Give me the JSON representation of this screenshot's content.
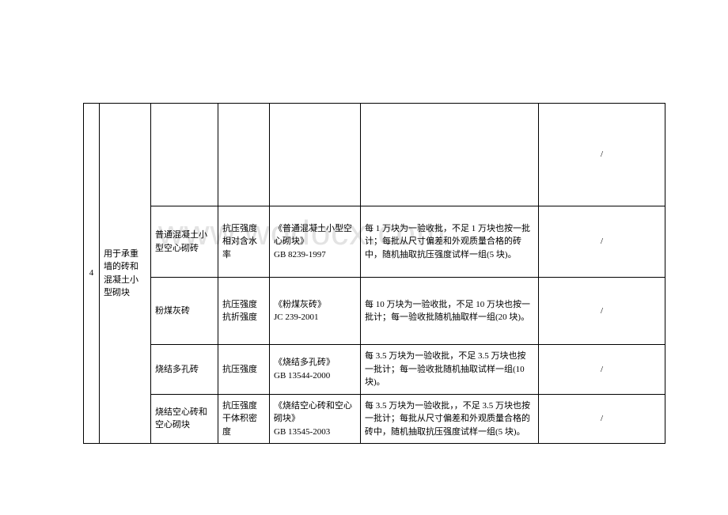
{
  "watermark": "www.wodocx.com",
  "table": {
    "index": "4",
    "category": "用于承重墙的砖和混凝土小型砌块",
    "rows": [
      {
        "material": "",
        "test": "",
        "standard": "",
        "sampling": "",
        "note": "/"
      },
      {
        "material": "普通混凝土小型空心砌砖",
        "test": "抗压强度\n相对含水率",
        "standard": "《普通混凝土小型空心砌块》\nGB 8239-1997",
        "sampling": "每 1 万块为一验收批，不足 1 万块也按一批计；每批从尺寸偏差和外观质量合格的砖中，随机抽取抗压强度试样一组(5 块)。",
        "note": "/"
      },
      {
        "material": "粉煤灰砖",
        "test": "抗压强度\n抗折强度",
        "standard": "《粉煤灰砖》\nJC 239-2001",
        "sampling": "每 10 万块为一验收批，不足 10 万块也按一批计；每一验收批随机抽取样一组(20 块)。",
        "note": "/"
      },
      {
        "material": "烧结多孔砖",
        "test": "抗压强度",
        "standard": "《烧结多孔砖》\nGB 13544-2000",
        "sampling": "每 3.5 万块为一验收批，不足 3.5 万块也按一批计；每一验收批随机抽取试样一组(10 块)。",
        "note": "/"
      },
      {
        "material": "烧结空心砖和空心砌块",
        "test": "抗压强度\n干体积密度",
        "standard": "《烧结空心砖和空心砌块》\nGB 13545-2003",
        "sampling": "每 3.5 万块为一验收批，，不足 3.5 万块也按一批计；每批从尺寸偏差和外观质量合格的砖中，随机抽取抗压强度试样一组(5 块)。",
        "note": "/"
      }
    ]
  }
}
